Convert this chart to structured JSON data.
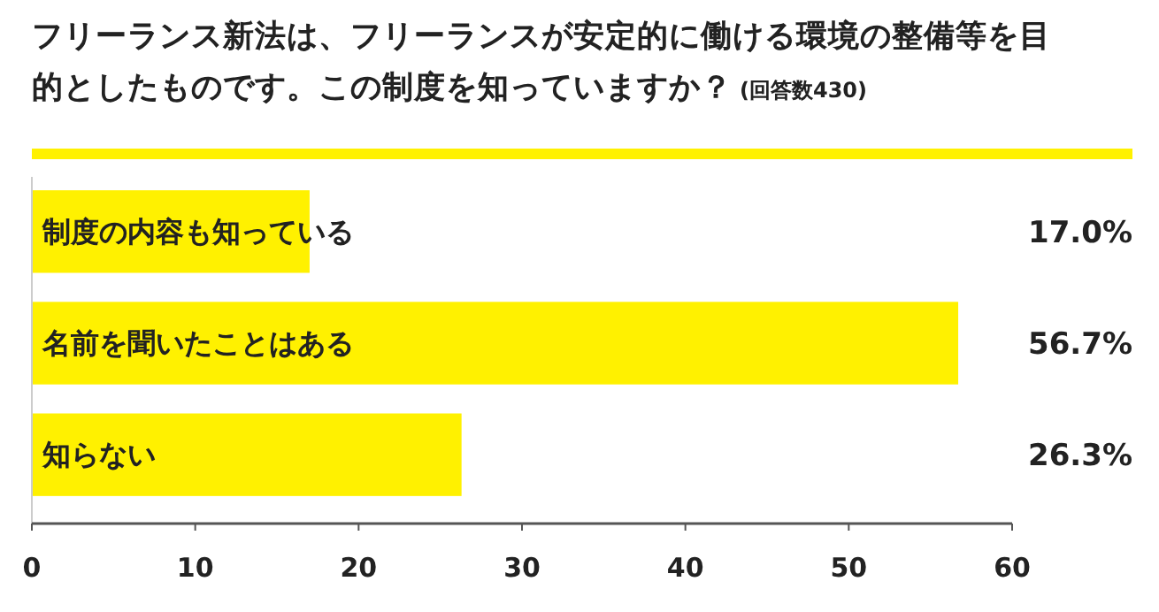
{
  "chart_data": {
    "type": "bar",
    "orientation": "horizontal",
    "title": "フリーランス新法は、フリーランスが安定的に働ける環境の整備等を目的としたものです。この制度を知っていますか？",
    "subtitle": "(回答数430)",
    "categories": [
      "制度の内容も知っている",
      "名前を聞いたことはある",
      "知らない"
    ],
    "values": [
      17.0,
      56.7,
      26.3
    ],
    "value_labels": [
      "17.0%",
      "56.7%",
      "26.3%"
    ],
    "color": "#fff100",
    "xlim": [
      0,
      60
    ],
    "xticks": [
      0,
      10,
      20,
      30,
      40,
      50,
      60
    ],
    "grid": false
  }
}
